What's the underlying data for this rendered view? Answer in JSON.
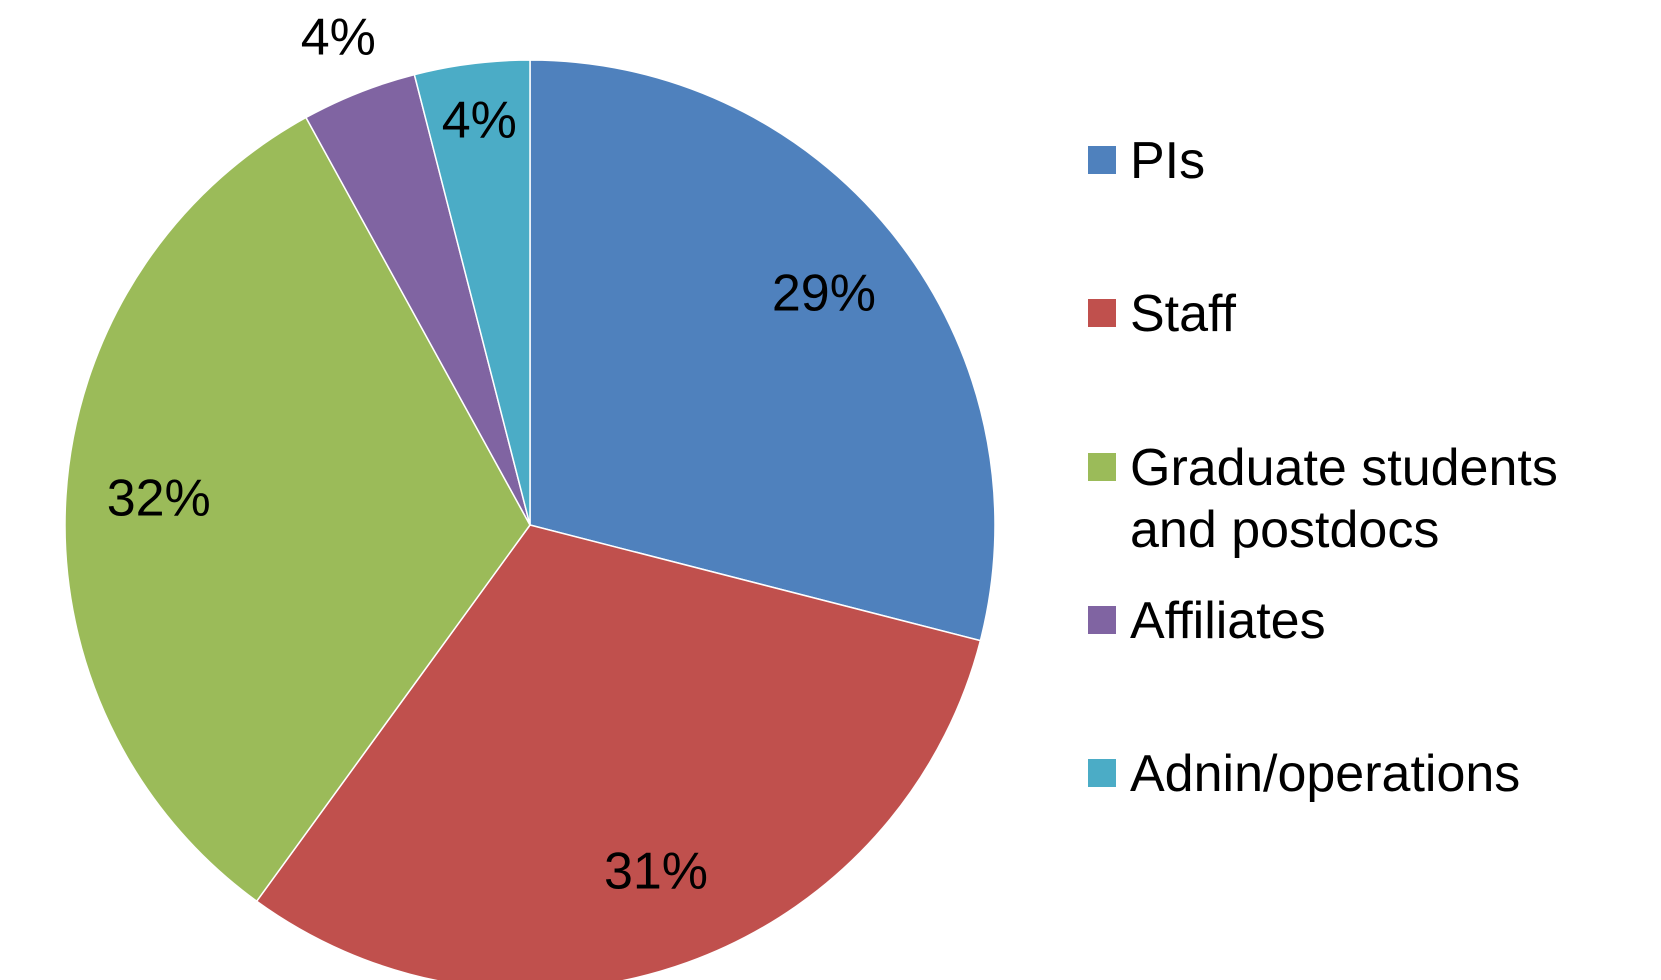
{
  "chart_data": {
    "type": "pie",
    "categories": [
      "PIs",
      "Staff",
      "Graduate students and postdocs",
      "Affiliates",
      "Adnin/operations"
    ],
    "values": [
      29,
      31,
      32,
      4,
      4
    ],
    "value_labels": [
      "29%",
      "31%",
      "32%",
      "4%",
      "4%"
    ],
    "colors": [
      "#4f81bd",
      "#c0504d",
      "#9bbb59",
      "#8064a2",
      "#4bacc6"
    ],
    "legend": "right"
  }
}
